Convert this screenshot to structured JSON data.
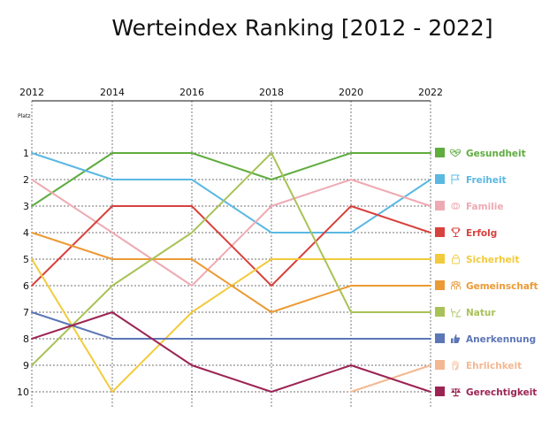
{
  "chart_data": {
    "type": "line",
    "title": "Werteindex Ranking [2012 - 2022]",
    "ylabel": "Platz",
    "x": [
      "2012",
      "2014",
      "2016",
      "2018",
      "2020",
      "2022"
    ],
    "y_ticks": [
      "1",
      "2",
      "3",
      "4",
      "5",
      "6",
      "7",
      "8",
      "9",
      "10"
    ],
    "ylim": [
      1,
      10
    ],
    "y_inverted": true,
    "grid": true,
    "legend_position": "right",
    "series": [
      {
        "name": "Gesundheit",
        "color": "#5fac3f",
        "icon": "heart-pulse-icon",
        "values": [
          3,
          1,
          1,
          2,
          1,
          1
        ]
      },
      {
        "name": "Freiheit",
        "color": "#5ab8e3",
        "icon": "flag-icon",
        "values": [
          1,
          2,
          2,
          4,
          4,
          2
        ]
      },
      {
        "name": "Familie",
        "color": "#eeaab2",
        "icon": "rings-icon",
        "values": [
          2,
          4,
          6,
          3,
          2,
          3
        ]
      },
      {
        "name": "Erfolg",
        "color": "#d8413c",
        "icon": "trophy-icon",
        "values": [
          6,
          3,
          3,
          6,
          3,
          4
        ]
      },
      {
        "name": "Sicherheit",
        "color": "#f2cb3c",
        "icon": "lock-icon",
        "values": [
          5,
          10,
          7,
          5,
          5,
          5
        ]
      },
      {
        "name": "Gemeinschaft",
        "color": "#eb9a35",
        "icon": "people-icon",
        "values": [
          4,
          5,
          5,
          7,
          6,
          6
        ]
      },
      {
        "name": "Natur",
        "color": "#a9c258",
        "icon": "plant-icon",
        "values": [
          9,
          6,
          4,
          1,
          7,
          7
        ]
      },
      {
        "name": "Anerkennung",
        "color": "#5c76b7",
        "icon": "thumbs-up-icon",
        "values": [
          7,
          8,
          8,
          8,
          8,
          8
        ]
      },
      {
        "name": "Ehrlichkeit",
        "color": "#f3b891",
        "icon": "hand-icon",
        "values": [
          null,
          null,
          null,
          null,
          10,
          9
        ]
      },
      {
        "name": "Gerechtigkeit",
        "color": "#9b2453",
        "icon": "scales-icon",
        "values": [
          8,
          7,
          9,
          10,
          9,
          10
        ]
      }
    ]
  }
}
